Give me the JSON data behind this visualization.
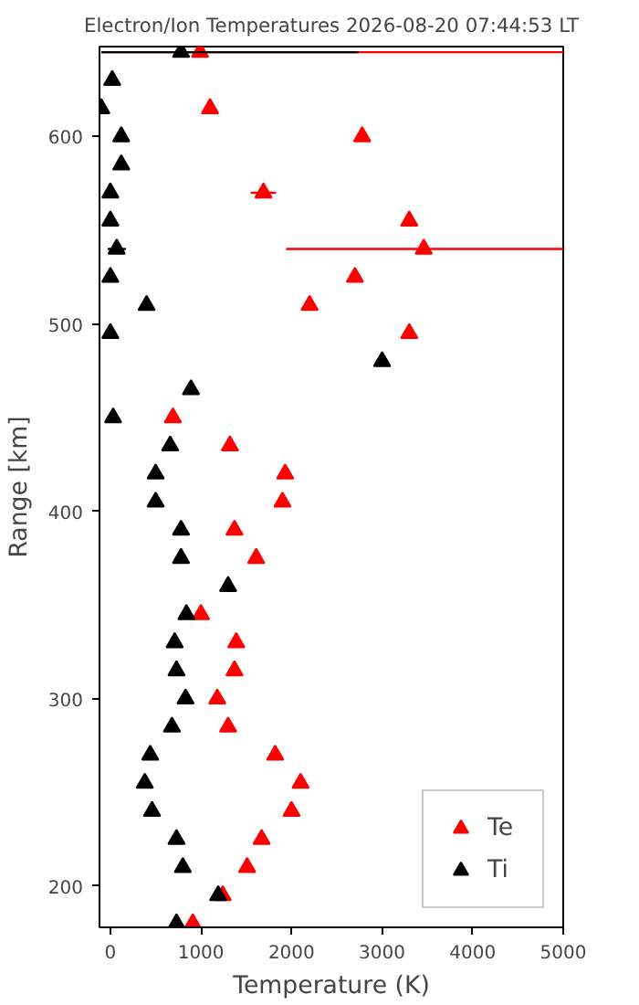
{
  "chart_data": {
    "type": "scatter",
    "title": "Electron/Ion Temperatures 2026-08-20 07:44:53 LT",
    "xlabel": "Temperature (K)",
    "ylabel": "Range [km]",
    "x": [
      645,
      630,
      615,
      600,
      585,
      570,
      555,
      540,
      525,
      510,
      495,
      480,
      465,
      450,
      435,
      420,
      405,
      390,
      375,
      360,
      345,
      330,
      315,
      300,
      285,
      270,
      255,
      240,
      225,
      210,
      195,
      180
    ],
    "series": [
      {
        "name": "Te",
        "color": "#ff0000",
        "values": [
          990,
          null,
          1100,
          2780,
          null,
          1690,
          3300,
          3460,
          2700,
          2200,
          3300,
          null,
          null,
          690,
          1320,
          1930,
          1900,
          1370,
          1610,
          null,
          1000,
          1390,
          1370,
          1180,
          1300,
          1820,
          2100,
          2000,
          1670,
          1510,
          1240,
          910
        ],
        "errors": [
          [
            -100,
            5000
          ],
          null,
          null,
          null,
          null,
          [
            1550,
            1830
          ],
          null,
          [
            1940,
            5000
          ],
          null,
          null,
          null,
          null,
          null,
          null,
          null,
          null,
          null,
          null,
          null,
          null,
          null,
          null,
          null,
          null,
          null,
          null,
          null,
          null,
          null,
          null,
          null,
          null
        ]
      },
      {
        "name": "Ti",
        "color": "#000000",
        "values": [
          780,
          20,
          -100,
          120,
          120,
          0,
          0,
          70,
          0,
          400,
          0,
          3000,
          890,
          30,
          660,
          500,
          500,
          780,
          780,
          1300,
          840,
          710,
          730,
          830,
          680,
          440,
          380,
          460,
          730,
          800,
          1190,
          730
        ],
        "errors": [
          [
            -100,
            2740
          ],
          null,
          null,
          null,
          null,
          null,
          null,
          [
            -30,
            170
          ],
          null,
          null,
          null,
          null,
          null,
          null,
          null,
          null,
          null,
          null,
          null,
          null,
          null,
          null,
          null,
          null,
          null,
          null,
          null,
          null,
          null,
          null,
          null,
          null
        ]
      }
    ],
    "xlim": [
      -120,
      5000
    ],
    "xticks": [
      0,
      1000,
      2000,
      3000,
      4000,
      5000
    ],
    "ylim": [
      178,
      648
    ],
    "yticks": [
      200,
      300,
      400,
      500,
      600
    ],
    "orientation": "horizontal",
    "marker": "triangle",
    "grid": false,
    "legend": "bottom right"
  }
}
